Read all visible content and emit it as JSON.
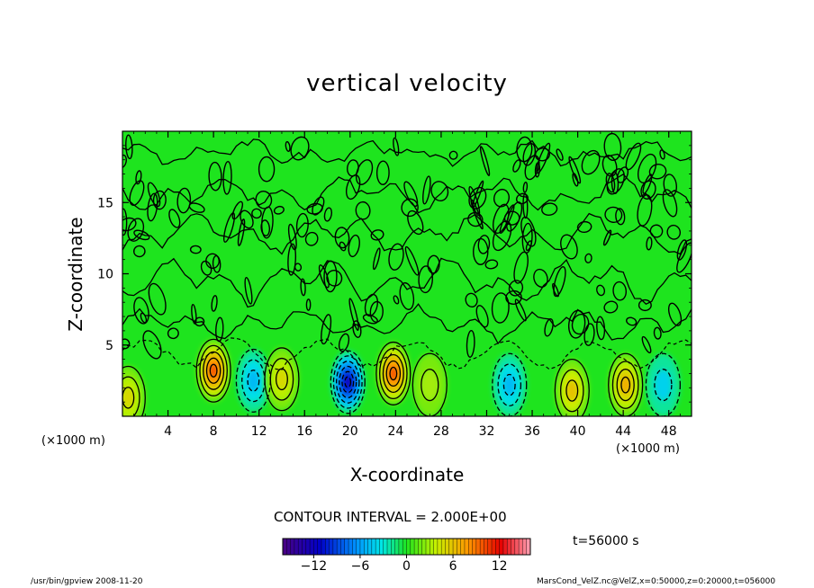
{
  "chart_data": {
    "type": "heatmap",
    "title": "vertical velocity",
    "xlabel": "X-coordinate",
    "ylabel": "Z-coordinate",
    "x_unit": "(×1000 m)",
    "xlim": [
      0,
      50
    ],
    "ylim": [
      0,
      20
    ],
    "x_ticks": [
      4,
      8,
      12,
      16,
      20,
      24,
      28,
      32,
      36,
      40,
      44,
      48
    ],
    "y_ticks": [
      5,
      10,
      15
    ],
    "contour_interval": "CONTOUR INTERVAL = 2.000E+00",
    "colorbar": {
      "range": [
        -16,
        16
      ],
      "ticks": [
        -12,
        -6,
        0,
        6,
        12
      ]
    },
    "features": [
      {
        "x": 8,
        "z": 3.2,
        "value": 10
      },
      {
        "x": 11.5,
        "z": 2.5,
        "value": -5
      },
      {
        "x": 14,
        "z": 2.6,
        "value": 5
      },
      {
        "x": 19.8,
        "z": 2.4,
        "value": -12
      },
      {
        "x": 23.8,
        "z": 3.0,
        "value": 10
      },
      {
        "x": 27,
        "z": 2.2,
        "value": 3
      },
      {
        "x": 34,
        "z": 2.2,
        "value": -5
      },
      {
        "x": 39.5,
        "z": 1.8,
        "value": 6
      },
      {
        "x": 44.2,
        "z": 2.2,
        "value": 7
      },
      {
        "x": 47.5,
        "z": 2.2,
        "value": -4
      },
      {
        "x": 0.5,
        "z": 1.3,
        "value": 5
      }
    ]
  },
  "time_label": "t=56000 s",
  "footer_left": "/usr/bin/gpview   2008-11-20",
  "footer_right": "MarsCond_VelZ.nc@VelZ,x=0:50000,z=0:20000,t=056000",
  "colors": {
    "background_field": "#1ee41e"
  }
}
